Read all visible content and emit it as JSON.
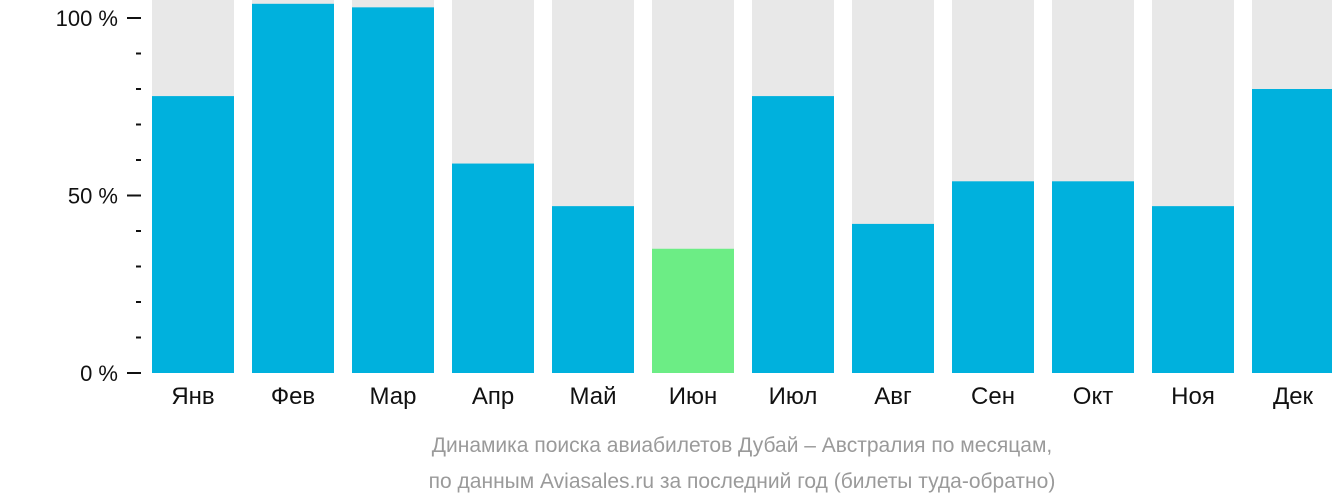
{
  "chart_data": {
    "type": "bar",
    "categories": [
      "Янв",
      "Фев",
      "Мар",
      "Апр",
      "Май",
      "Июн",
      "Июл",
      "Авг",
      "Сен",
      "Окт",
      "Ноя",
      "Дек"
    ],
    "values": [
      78,
      104,
      103,
      59,
      47,
      35,
      78,
      42,
      54,
      54,
      47,
      80
    ],
    "ylim": [
      0,
      100
    ],
    "y_ticks": [
      {
        "value": 0,
        "label": "0 %"
      },
      {
        "value": 50,
        "label": "50 %"
      },
      {
        "value": 100,
        "label": "100 %"
      }
    ],
    "y_minor_tick_step": 10,
    "highlight_index": 5,
    "grid": false,
    "legend": "none",
    "colors": {
      "bar": "#00b1dd",
      "highlight": "#6ced85",
      "track": "#e8e8e8",
      "axis": "#111111",
      "caption": "#9a9a9a"
    }
  },
  "caption": {
    "line1": "Динамика поиска авиабилетов Дубай – Австралия по месяцам,",
    "line2": "по данным Aviasales.ru за последний год (билеты туда-обратно)"
  }
}
